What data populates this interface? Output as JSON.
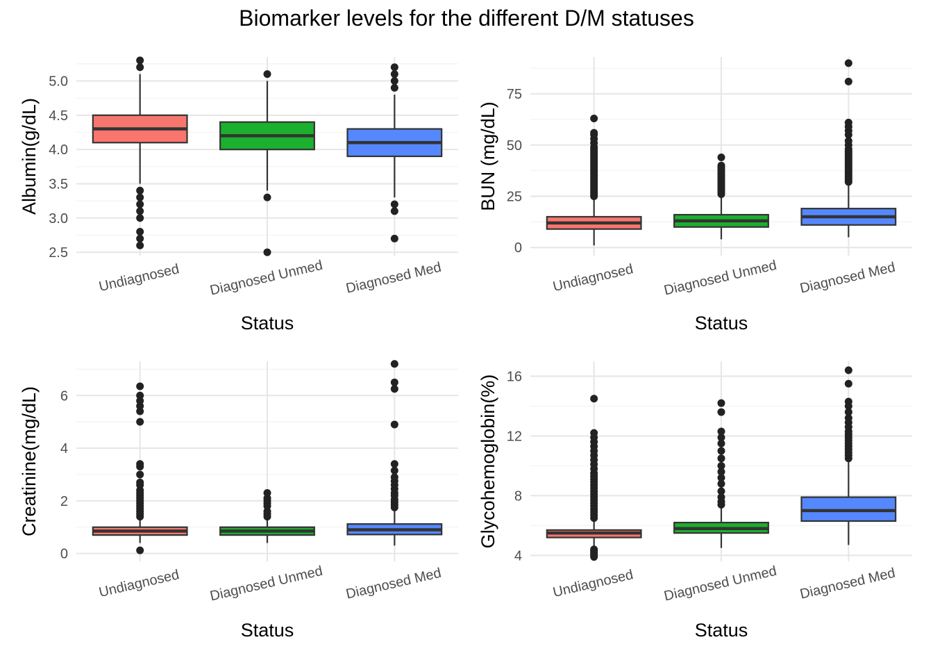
{
  "title": "Biomarker levels for the different D/M statuses",
  "colors": {
    "undiagnosed": "#F8766D",
    "diagnosed_unmed": "#1BB02E",
    "diagnosed_med": "#5588FF",
    "outline": "#333333",
    "point": "#222222",
    "grid_major": "#e6e6e6",
    "grid_minor": "#f2f2f2"
  },
  "chart_data": [
    {
      "type": "box",
      "title": "",
      "xlabel": "Status",
      "ylabel": "Albumin(g/dL)",
      "categories": [
        "Undiagnosed",
        "Diagnosed Unmed",
        "Diagnosed Med"
      ],
      "ylim": [
        2.45,
        5.35
      ],
      "yticks": [
        2.5,
        3.0,
        3.5,
        4.0,
        4.5,
        5.0
      ],
      "yticklabels": [
        "2.5",
        "3.0",
        "3.5",
        "4.0",
        "4.5",
        "5.0"
      ],
      "grid": true,
      "boxes": [
        {
          "name": "Undiagnosed",
          "whisker_low": 3.5,
          "q1": 4.1,
          "median": 4.3,
          "q3": 4.5,
          "whisker_high": 5.1,
          "outliers": [
            5.3,
            5.2,
            3.4,
            3.3,
            3.2,
            3.1,
            3.0,
            2.8,
            2.7,
            2.6
          ]
        },
        {
          "name": "Diagnosed Unmed",
          "whisker_low": 3.4,
          "q1": 4.0,
          "median": 4.2,
          "q3": 4.4,
          "whisker_high": 5.0,
          "outliers": [
            5.1,
            3.3,
            2.5
          ]
        },
        {
          "name": "Diagnosed Med",
          "whisker_low": 3.3,
          "q1": 3.9,
          "median": 4.1,
          "q3": 4.3,
          "whisker_high": 4.8,
          "outliers": [
            5.2,
            5.1,
            5.0,
            4.9,
            3.2,
            3.1,
            2.7
          ]
        }
      ]
    },
    {
      "type": "box",
      "title": "",
      "xlabel": "Status",
      "ylabel": "BUN (mg/dL)",
      "categories": [
        "Undiagnosed",
        "Diagnosed Unmed",
        "Diagnosed Med"
      ],
      "ylim": [
        -4,
        93
      ],
      "yticks": [
        0,
        25,
        50,
        75
      ],
      "yticklabels": [
        "0",
        "25",
        "50",
        "75"
      ],
      "grid": true,
      "boxes": [
        {
          "name": "Undiagnosed",
          "whisker_low": 1,
          "q1": 9,
          "median": 12,
          "q3": 15,
          "whisker_high": 24,
          "outliers": [
            25,
            26,
            27,
            28,
            29,
            30,
            31,
            32,
            33,
            34,
            35,
            36,
            37,
            38,
            39,
            40,
            41,
            42,
            43,
            44,
            45,
            46,
            47,
            48,
            49,
            51,
            53,
            55,
            56,
            63
          ]
        },
        {
          "name": "Diagnosed Unmed",
          "whisker_low": 4,
          "q1": 10,
          "median": 13,
          "q3": 16,
          "whisker_high": 25,
          "outliers": [
            26,
            27,
            28,
            29,
            30,
            31,
            32,
            33,
            34,
            35,
            36,
            37,
            38,
            39,
            40,
            44
          ]
        },
        {
          "name": "Diagnosed Med",
          "whisker_low": 5,
          "q1": 11,
          "median": 15,
          "q3": 19,
          "whisker_high": 31,
          "outliers": [
            32,
            33,
            34,
            35,
            36,
            37,
            38,
            39,
            40,
            41,
            42,
            43,
            44,
            45,
            46,
            47,
            48,
            50,
            52,
            55,
            57,
            59,
            61,
            81,
            90
          ]
        }
      ]
    },
    {
      "type": "box",
      "title": "",
      "xlabel": "Status",
      "ylabel": "Creatinine(mg/dL)",
      "categories": [
        "Undiagnosed",
        "Diagnosed Unmed",
        "Diagnosed Med"
      ],
      "ylim": [
        -0.3,
        7.3
      ],
      "yticks": [
        0,
        2,
        4,
        6
      ],
      "yticklabels": [
        "0",
        "2",
        "4",
        "6"
      ],
      "grid": true,
      "boxes": [
        {
          "name": "Undiagnosed",
          "whisker_low": 0.4,
          "q1": 0.7,
          "median": 0.85,
          "q3": 1.0,
          "whisker_high": 1.35,
          "outliers": [
            1.4,
            1.5,
            1.6,
            1.7,
            1.8,
            1.9,
            2.0,
            2.1,
            2.2,
            2.3,
            2.4,
            2.6,
            2.7,
            3.0,
            3.3,
            3.4,
            5.0,
            5.4,
            5.6,
            5.8,
            6.0,
            6.35,
            0.12
          ]
        },
        {
          "name": "Diagnosed Unmed",
          "whisker_low": 0.4,
          "q1": 0.7,
          "median": 0.85,
          "q3": 1.0,
          "whisker_high": 1.35,
          "outliers": [
            1.4,
            1.5,
            1.6,
            1.8,
            1.9,
            2.0,
            2.1,
            2.3
          ]
        },
        {
          "name": "Diagnosed Med",
          "whisker_low": 0.3,
          "q1": 0.72,
          "median": 0.9,
          "q3": 1.12,
          "whisker_high": 1.7,
          "outliers": [
            1.75,
            1.85,
            1.95,
            2.05,
            2.2,
            2.3,
            2.45,
            2.6,
            2.75,
            2.9,
            3.15,
            3.4,
            4.9,
            6.25,
            6.5,
            7.2
          ]
        }
      ]
    },
    {
      "type": "box",
      "title": "",
      "xlabel": "Status",
      "ylabel": "Glycohemoglobin(%)",
      "categories": [
        "Undiagnosed",
        "Diagnosed Unmed",
        "Diagnosed Med"
      ],
      "ylim": [
        3.6,
        17.0
      ],
      "yticks": [
        4,
        8,
        12,
        16
      ],
      "yticklabels": [
        "4",
        "8",
        "12",
        "16"
      ],
      "grid": true,
      "boxes": [
        {
          "name": "Undiagnosed",
          "whisker_low": 4.6,
          "q1": 5.2,
          "median": 5.5,
          "q3": 5.7,
          "whisker_high": 6.4,
          "outliers": [
            3.9,
            4.0,
            4.1,
            4.2,
            4.3,
            4.4,
            6.5,
            6.7,
            6.9,
            7.1,
            7.3,
            7.5,
            7.7,
            7.9,
            8.1,
            8.3,
            8.5,
            8.7,
            8.9,
            9.1,
            9.3,
            9.5,
            9.8,
            10.1,
            10.4,
            10.7,
            11.0,
            11.3,
            11.6,
            11.9,
            12.2,
            14.5
          ]
        },
        {
          "name": "Diagnosed Unmed",
          "whisker_low": 4.5,
          "q1": 5.5,
          "median": 5.8,
          "q3": 6.2,
          "whisker_high": 7.2,
          "outliers": [
            7.4,
            7.6,
            7.9,
            8.3,
            8.8,
            9.2,
            9.6,
            10.0,
            10.5,
            11.0,
            11.5,
            11.9,
            12.3,
            13.6,
            14.2
          ]
        },
        {
          "name": "Diagnosed Med",
          "whisker_low": 4.7,
          "q1": 6.3,
          "median": 7.0,
          "q3": 7.9,
          "whisker_high": 10.3,
          "outliers": [
            10.5,
            10.7,
            10.9,
            11.1,
            11.3,
            11.5,
            11.7,
            11.9,
            12.1,
            12.3,
            12.6,
            12.9,
            13.2,
            13.6,
            14.0,
            14.3,
            15.5,
            16.4
          ]
        }
      ]
    }
  ]
}
